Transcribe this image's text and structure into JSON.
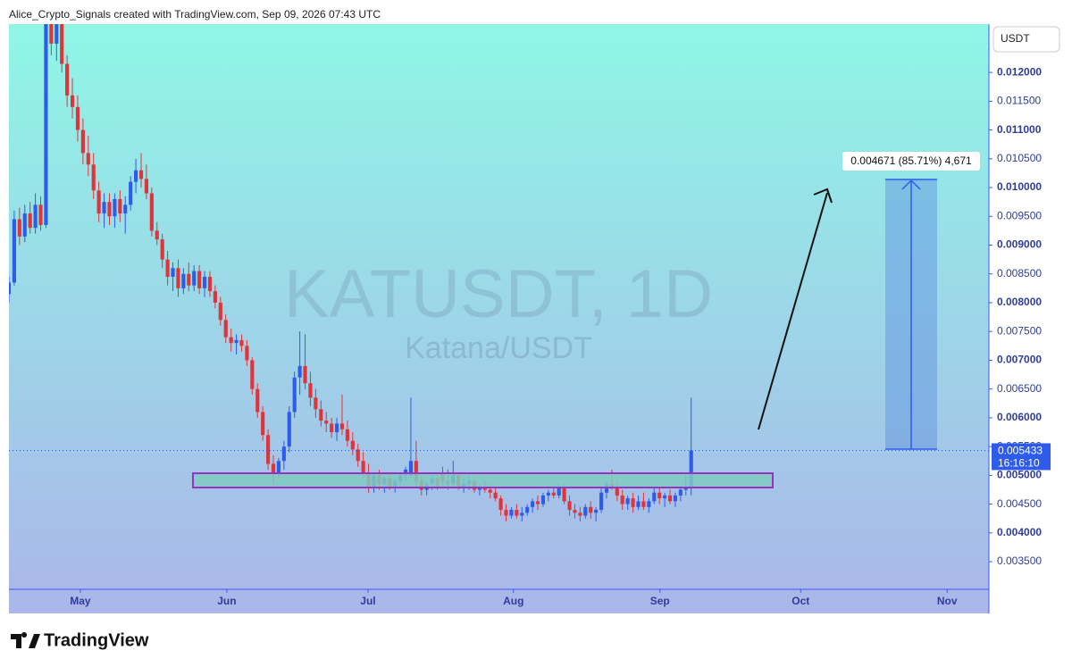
{
  "header": "Alice_Crypto_Signals created with TradingView.com, Sep 09, 2026 07:43 UTC",
  "brand": "TradingView",
  "chart_data": {
    "type": "candlestick",
    "title": "KATUSDT, 1D",
    "subtitle": "Katana/USDT",
    "currency": "USDT",
    "up_color": "#2f5bea",
    "down_color": "#e0343a",
    "annotation": "0.004671 (85.71%) 4,671",
    "last_price": {
      "value": 0.005433,
      "label": "0.005433"
    },
    "countdown": "16:16:10",
    "xlim": [
      0,
      185.3
    ],
    "xticks": [
      {
        "value": 13.5,
        "label": "May"
      },
      {
        "value": 41.2,
        "label": "Jun"
      },
      {
        "value": 67.9,
        "label": "Jul"
      },
      {
        "value": 95.4,
        "label": "Aug"
      },
      {
        "value": 123.1,
        "label": "Sep"
      },
      {
        "value": 149.7,
        "label": "Oct"
      },
      {
        "value": 177.4,
        "label": "Nov"
      }
    ],
    "ylim": [
      0.00302,
      0.01284
    ],
    "yticks": [
      {
        "value": 0.0035,
        "label": "0.003500"
      },
      {
        "value": 0.004,
        "label": "0.004000"
      },
      {
        "value": 0.0045,
        "label": "0.004500"
      },
      {
        "value": 0.005,
        "label": "0.005000"
      },
      {
        "value": 0.0055,
        "label": "0.005500"
      },
      {
        "value": 0.006,
        "label": "0.006000"
      },
      {
        "value": 0.0065,
        "label": "0.006500"
      },
      {
        "value": 0.007,
        "label": "0.007000"
      },
      {
        "value": 0.0075,
        "label": "0.007500"
      },
      {
        "value": 0.008,
        "label": "0.008000"
      },
      {
        "value": 0.0085,
        "label": "0.008500"
      },
      {
        "value": 0.009,
        "label": "0.009000"
      },
      {
        "value": 0.0095,
        "label": "0.009500"
      },
      {
        "value": 0.01,
        "label": "0.010000"
      },
      {
        "value": 0.0105,
        "label": "0.010500"
      },
      {
        "value": 0.011,
        "label": "0.011000"
      },
      {
        "value": 0.0115,
        "label": "0.011500"
      },
      {
        "value": 0.012,
        "label": "0.012000"
      }
    ],
    "ohlc": [
      [
        0.00815,
        0.00845,
        0.008,
        0.00835
      ],
      [
        0.00835,
        0.0096,
        0.0083,
        0.00945
      ],
      [
        0.00945,
        0.00965,
        0.009,
        0.00915
      ],
      [
        0.00915,
        0.0097,
        0.00905,
        0.00955
      ],
      [
        0.00955,
        0.00975,
        0.0092,
        0.0093
      ],
      [
        0.0093,
        0.0099,
        0.0092,
        0.0097
      ],
      [
        0.0097,
        0.00985,
        0.00925,
        0.00935
      ],
      [
        0.00935,
        0.0131,
        0.0093,
        0.0129
      ],
      [
        0.0129,
        0.0132,
        0.0123,
        0.0125
      ],
      [
        0.0125,
        0.013,
        0.0122,
        0.01285
      ],
      [
        0.01285,
        0.013,
        0.012,
        0.01215
      ],
      [
        0.01215,
        0.0123,
        0.0114,
        0.0116
      ],
      [
        0.0116,
        0.0119,
        0.0112,
        0.0114
      ],
      [
        0.0114,
        0.0116,
        0.0108,
        0.011
      ],
      [
        0.011,
        0.0112,
        0.0104,
        0.0106
      ],
      [
        0.0106,
        0.0109,
        0.0102,
        0.0104
      ],
      [
        0.0104,
        0.0106,
        0.0098,
        0.00995
      ],
      [
        0.00995,
        0.0101,
        0.0094,
        0.00955
      ],
      [
        0.00955,
        0.0099,
        0.0093,
        0.00975
      ],
      [
        0.00975,
        0.0099,
        0.00935,
        0.0095
      ],
      [
        0.0095,
        0.0099,
        0.0093,
        0.0098
      ],
      [
        0.0098,
        0.00995,
        0.0094,
        0.00955
      ],
      [
        0.00955,
        0.00985,
        0.0092,
        0.0097
      ],
      [
        0.0097,
        0.0102,
        0.0096,
        0.0101
      ],
      [
        0.0101,
        0.0105,
        0.0099,
        0.0103
      ],
      [
        0.0103,
        0.0106,
        0.01,
        0.01015
      ],
      [
        0.01015,
        0.0104,
        0.0098,
        0.0099
      ],
      [
        0.0099,
        0.01,
        0.00915,
        0.00925
      ],
      [
        0.00925,
        0.0094,
        0.009,
        0.0091
      ],
      [
        0.0091,
        0.0092,
        0.0086,
        0.00875
      ],
      [
        0.00875,
        0.0089,
        0.0083,
        0.00845
      ],
      [
        0.00845,
        0.0087,
        0.0082,
        0.0086
      ],
      [
        0.0086,
        0.00875,
        0.0081,
        0.00825
      ],
      [
        0.00825,
        0.0086,
        0.00815,
        0.0085
      ],
      [
        0.0085,
        0.0087,
        0.0082,
        0.0083
      ],
      [
        0.0083,
        0.00865,
        0.0082,
        0.00855
      ],
      [
        0.00855,
        0.00865,
        0.00815,
        0.00825
      ],
      [
        0.00825,
        0.00855,
        0.0081,
        0.00845
      ],
      [
        0.00845,
        0.00855,
        0.0081,
        0.0082
      ],
      [
        0.0082,
        0.0083,
        0.0079,
        0.008
      ],
      [
        0.008,
        0.0081,
        0.0076,
        0.0077
      ],
      [
        0.0077,
        0.0078,
        0.0073,
        0.0074
      ],
      [
        0.0074,
        0.00755,
        0.00715,
        0.0073
      ],
      [
        0.0073,
        0.00745,
        0.0071,
        0.00735
      ],
      [
        0.00735,
        0.00745,
        0.00715,
        0.00725
      ],
      [
        0.00725,
        0.00735,
        0.0069,
        0.007
      ],
      [
        0.007,
        0.00705,
        0.0064,
        0.0065
      ],
      [
        0.0065,
        0.0066,
        0.006,
        0.0061
      ],
      [
        0.0061,
        0.0062,
        0.0056,
        0.0057
      ],
      [
        0.0057,
        0.0058,
        0.0051,
        0.0052
      ],
      [
        0.0052,
        0.00535,
        0.00485,
        0.00505
      ],
      [
        0.00505,
        0.0053,
        0.00495,
        0.00525
      ],
      [
        0.00525,
        0.0056,
        0.0051,
        0.0055
      ],
      [
        0.0055,
        0.0062,
        0.0054,
        0.0061
      ],
      [
        0.0061,
        0.0068,
        0.006,
        0.0067
      ],
      [
        0.0067,
        0.0075,
        0.0064,
        0.0069
      ],
      [
        0.0069,
        0.00745,
        0.0065,
        0.0066
      ],
      [
        0.0066,
        0.0068,
        0.0062,
        0.00635
      ],
      [
        0.00635,
        0.0065,
        0.006,
        0.00615
      ],
      [
        0.00615,
        0.0063,
        0.00585,
        0.00595
      ],
      [
        0.00595,
        0.0061,
        0.00575,
        0.0059
      ],
      [
        0.0059,
        0.006,
        0.00565,
        0.00575
      ],
      [
        0.00575,
        0.006,
        0.0056,
        0.0059
      ],
      [
        0.0059,
        0.0064,
        0.0057,
        0.0058
      ],
      [
        0.0058,
        0.00595,
        0.0055,
        0.0056
      ],
      [
        0.0056,
        0.00575,
        0.00535,
        0.00545
      ],
      [
        0.00545,
        0.00555,
        0.00515,
        0.00525
      ],
      [
        0.00525,
        0.0054,
        0.00495,
        0.00505
      ],
      [
        0.00505,
        0.0052,
        0.0047,
        0.0048
      ],
      [
        0.0048,
        0.00505,
        0.0047,
        0.005
      ],
      [
        0.005,
        0.0051,
        0.00475,
        0.00485
      ],
      [
        0.00485,
        0.005,
        0.0047,
        0.00495
      ],
      [
        0.00495,
        0.00505,
        0.00475,
        0.0048
      ],
      [
        0.0048,
        0.00495,
        0.0047,
        0.0049
      ],
      [
        0.0049,
        0.00505,
        0.0048,
        0.005
      ],
      [
        0.005,
        0.00515,
        0.0049,
        0.0051
      ],
      [
        0.005,
        0.00635,
        0.00495,
        0.00525
      ],
      [
        0.00525,
        0.0056,
        0.0048,
        0.0049
      ],
      [
        0.0049,
        0.005,
        0.00465,
        0.00475
      ],
      [
        0.00475,
        0.0049,
        0.00465,
        0.00485
      ],
      [
        0.00485,
        0.005,
        0.00475,
        0.00495
      ],
      [
        0.00495,
        0.00505,
        0.00475,
        0.0048
      ],
      [
        0.00505,
        0.00515,
        0.0048,
        0.0049
      ],
      [
        0.0049,
        0.0051,
        0.00475,
        0.00485
      ],
      [
        0.00485,
        0.00525,
        0.0048,
        0.005
      ],
      [
        0.005,
        0.00505,
        0.00475,
        0.0048
      ],
      [
        0.0048,
        0.00495,
        0.0047,
        0.00485
      ],
      [
        0.00485,
        0.005,
        0.00475,
        0.0049
      ],
      [
        0.0049,
        0.00495,
        0.0047,
        0.00475
      ],
      [
        0.00475,
        0.00485,
        0.00465,
        0.0048
      ],
      [
        0.0048,
        0.0049,
        0.0047,
        0.00475
      ],
      [
        0.00475,
        0.00485,
        0.0046,
        0.0047
      ],
      [
        0.0047,
        0.0048,
        0.00455,
        0.0046
      ],
      [
        0.0046,
        0.00465,
        0.0043,
        0.0044
      ],
      [
        0.0044,
        0.0045,
        0.0042,
        0.0043
      ],
      [
        0.0043,
        0.00445,
        0.00425,
        0.0044
      ],
      [
        0.0044,
        0.0045,
        0.00425,
        0.0043
      ],
      [
        0.0043,
        0.00445,
        0.0042,
        0.00435
      ],
      [
        0.00435,
        0.0045,
        0.0043,
        0.00445
      ],
      [
        0.00445,
        0.0046,
        0.00435,
        0.00455
      ],
      [
        0.00455,
        0.00465,
        0.0044,
        0.0045
      ],
      [
        0.0045,
        0.0047,
        0.00445,
        0.00465
      ],
      [
        0.00465,
        0.00475,
        0.00455,
        0.0047
      ],
      [
        0.0047,
        0.0048,
        0.0046,
        0.00465
      ],
      [
        0.00465,
        0.00485,
        0.0046,
        0.0048
      ],
      [
        0.0048,
        0.00485,
        0.0045,
        0.00455
      ],
      [
        0.00455,
        0.00465,
        0.0043,
        0.0044
      ],
      [
        0.0044,
        0.0045,
        0.00425,
        0.00435
      ],
      [
        0.00435,
        0.00445,
        0.0042,
        0.0043
      ],
      [
        0.0043,
        0.0045,
        0.00425,
        0.00445
      ],
      [
        0.00445,
        0.00455,
        0.00425,
        0.00435
      ],
      [
        0.00435,
        0.00445,
        0.0042,
        0.0044
      ],
      [
        0.0044,
        0.0048,
        0.00435,
        0.0047
      ],
      [
        0.0047,
        0.0049,
        0.0046,
        0.00485
      ],
      [
        0.00485,
        0.0051,
        0.00475,
        0.0048
      ],
      [
        0.0048,
        0.0049,
        0.00455,
        0.00465
      ],
      [
        0.00465,
        0.00475,
        0.0044,
        0.0045
      ],
      [
        0.0045,
        0.00465,
        0.0044,
        0.0046
      ],
      [
        0.0046,
        0.0047,
        0.00435,
        0.00445
      ],
      [
        0.00445,
        0.00465,
        0.0044,
        0.00455
      ],
      [
        0.00455,
        0.0047,
        0.0044,
        0.00445
      ],
      [
        0.00445,
        0.0046,
        0.00435,
        0.00455
      ],
      [
        0.00455,
        0.0048,
        0.0045,
        0.0047
      ],
      [
        0.0047,
        0.0048,
        0.0045,
        0.0046
      ],
      [
        0.0046,
        0.0047,
        0.00445,
        0.00465
      ],
      [
        0.00465,
        0.00475,
        0.0045,
        0.00455
      ],
      [
        0.00455,
        0.0047,
        0.00445,
        0.00465
      ],
      [
        0.00465,
        0.0048,
        0.00455,
        0.00475
      ],
      [
        0.00475,
        0.005,
        0.00465,
        0.0048
      ],
      [
        0.0048,
        0.00635,
        0.00465,
        0.00543
      ]
    ]
  }
}
